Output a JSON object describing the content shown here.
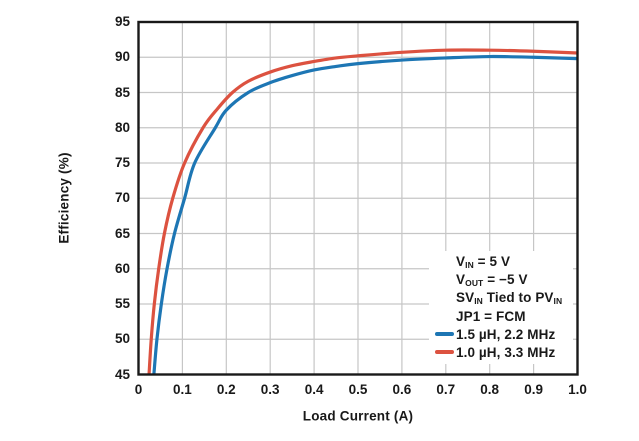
{
  "chart_data": {
    "type": "line",
    "title": "",
    "xlabel": "Load Current (A)",
    "ylabel": "Efficiency (%)",
    "xlim": [
      0,
      1.0
    ],
    "ylim": [
      45,
      95
    ],
    "grid": true,
    "legend_position": "lower-right",
    "x_tick_values": [
      0,
      0.1,
      0.2,
      0.3,
      0.4,
      0.5,
      0.6,
      0.7,
      0.8,
      0.9,
      1.0
    ],
    "x_tick_labels": [
      "0",
      "0.1",
      "0.2",
      "0.3",
      "0.4",
      "0.5",
      "0.6",
      "0.7",
      "0.8",
      "0.9",
      "1.0"
    ],
    "y_tick_values": [
      45,
      50,
      55,
      60,
      65,
      70,
      75,
      80,
      85,
      90,
      95
    ],
    "annotation_lines": [
      [
        {
          "t": "V"
        },
        {
          "sub": "IN"
        },
        {
          "t": " = 5 V"
        }
      ],
      [
        {
          "t": "V"
        },
        {
          "sub": "OUT"
        },
        {
          "t": " = −5 V"
        }
      ],
      [
        {
          "t": "SV"
        },
        {
          "sub": "IN"
        },
        {
          "t": " Tied to PV"
        },
        {
          "sub": "IN"
        }
      ],
      [
        {
          "t": "JP1 = FCM"
        }
      ]
    ],
    "series": [
      {
        "name": "1.5 µH, 2.2 MHz",
        "color": "#1d76b4",
        "points": [
          [
            0.035,
            45
          ],
          [
            0.042,
            50
          ],
          [
            0.052,
            55
          ],
          [
            0.065,
            60
          ],
          [
            0.082,
            65
          ],
          [
            0.105,
            70
          ],
          [
            0.128,
            75
          ],
          [
            0.175,
            80
          ],
          [
            0.2,
            82.5
          ],
          [
            0.25,
            85
          ],
          [
            0.3,
            86.4
          ],
          [
            0.35,
            87.4
          ],
          [
            0.4,
            88.2
          ],
          [
            0.45,
            88.7
          ],
          [
            0.5,
            89.1
          ],
          [
            0.6,
            89.6
          ],
          [
            0.7,
            89.9
          ],
          [
            0.8,
            90.1
          ],
          [
            0.9,
            90.0
          ],
          [
            1.0,
            89.8
          ]
        ]
      },
      {
        "name": "1.0 µH, 3.3 MHz",
        "color": "#dc5240",
        "points": [
          [
            0.024,
            45
          ],
          [
            0.029,
            50
          ],
          [
            0.036,
            55
          ],
          [
            0.046,
            60
          ],
          [
            0.059,
            65
          ],
          [
            0.078,
            70
          ],
          [
            0.105,
            75
          ],
          [
            0.147,
            80
          ],
          [
            0.18,
            82.7
          ],
          [
            0.214,
            85
          ],
          [
            0.25,
            86.6
          ],
          [
            0.3,
            87.9
          ],
          [
            0.35,
            88.8
          ],
          [
            0.4,
            89.4
          ],
          [
            0.45,
            89.9
          ],
          [
            0.5,
            90.2
          ],
          [
            0.6,
            90.7
          ],
          [
            0.7,
            91.0
          ],
          [
            0.8,
            91.0
          ],
          [
            0.9,
            90.85
          ],
          [
            1.0,
            90.6
          ]
        ]
      }
    ],
    "colors": {
      "grid": "#c6c6c6",
      "frame": "#191919",
      "text": "#191919",
      "background": "#ffffff"
    }
  }
}
